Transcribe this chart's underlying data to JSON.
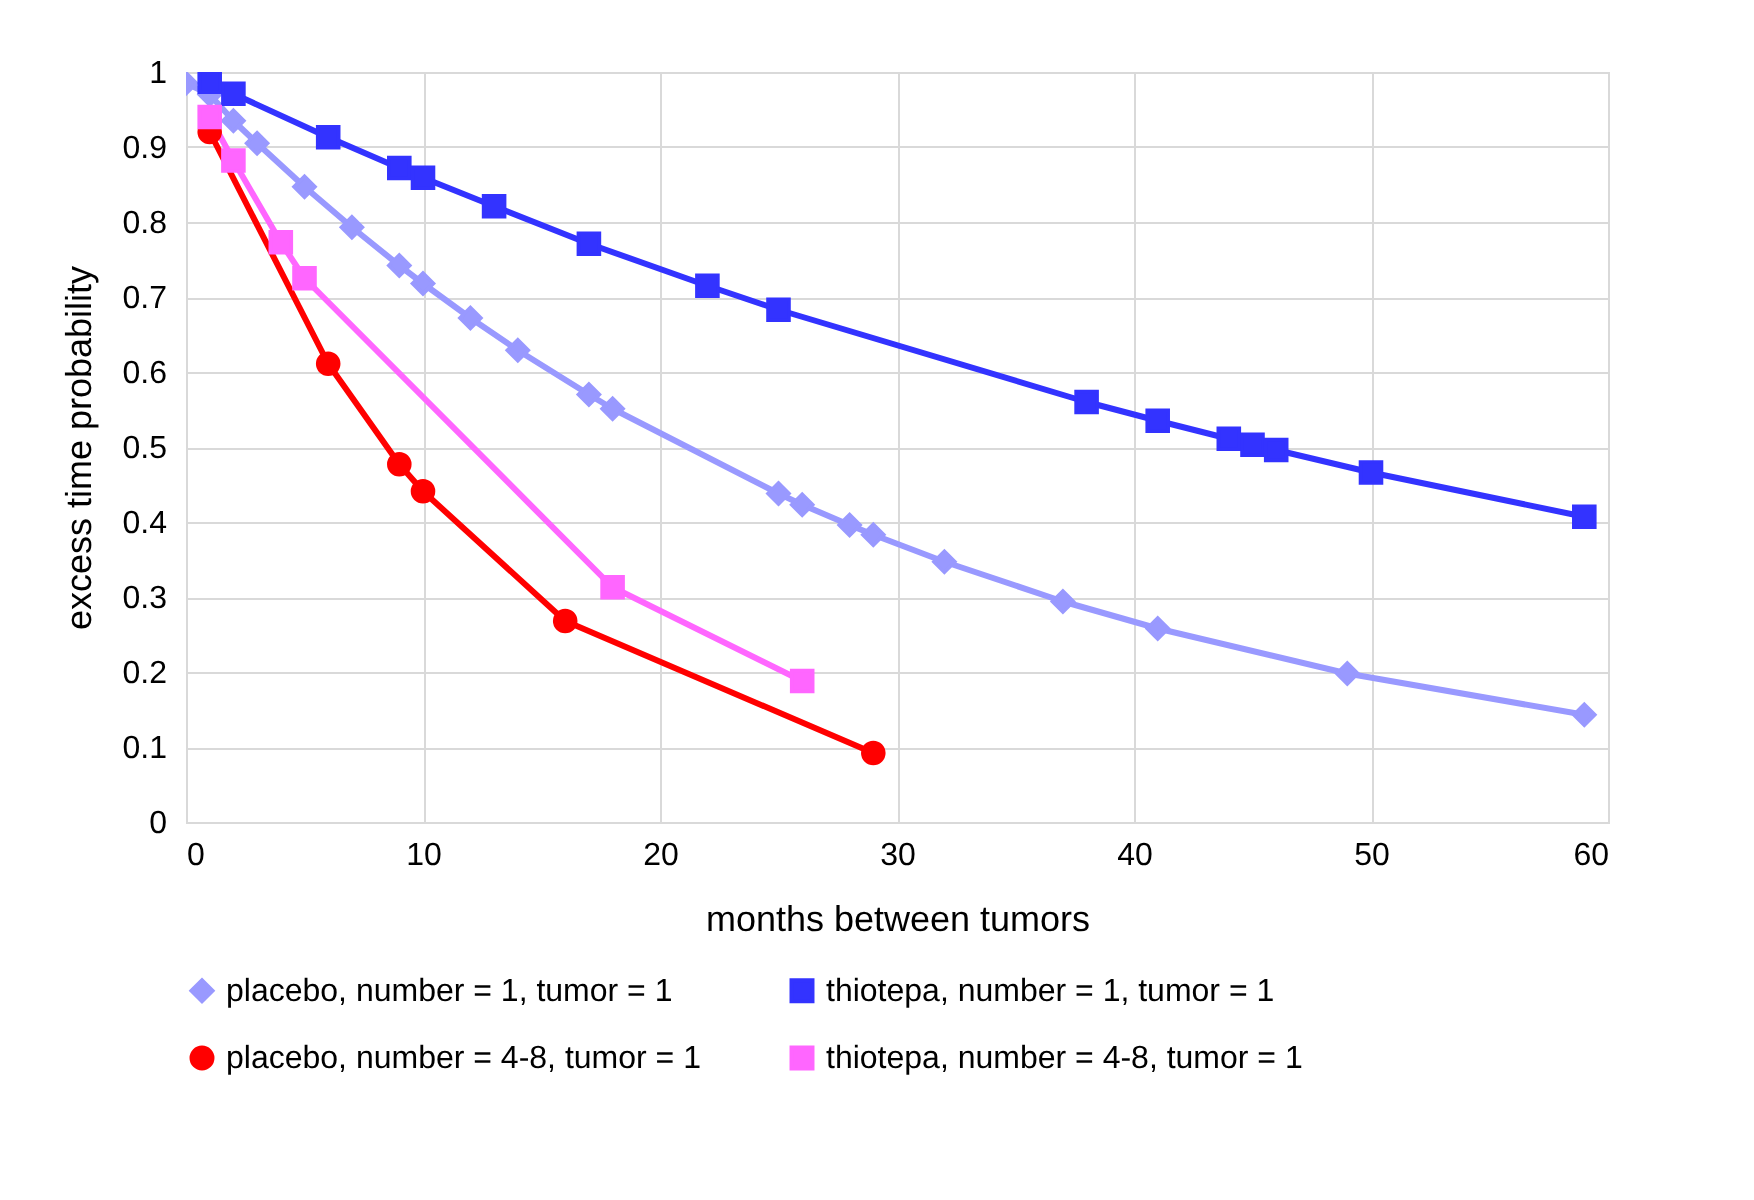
{
  "chart_data": {
    "type": "line",
    "xlabel": "months between tumors",
    "ylabel": "excess time probability",
    "xlim": [
      0,
      60
    ],
    "xticks": [
      0,
      10,
      20,
      30,
      40,
      50,
      60
    ],
    "ylim": [
      0,
      1
    ],
    "yticks": [
      0,
      0.1,
      0.2,
      0.3,
      0.4,
      0.5,
      0.6,
      0.7,
      0.8,
      0.9,
      1
    ],
    "grid": true,
    "legend": "bottom",
    "line_style": "solid",
    "series": [
      {
        "name": "placebo, number = 1, tumor = 1",
        "color": "#9999ff",
        "marker": "diamond",
        "x": [
          0,
          1,
          2,
          3,
          5,
          7,
          9,
          10,
          12,
          14,
          17,
          18,
          25,
          26,
          28,
          29,
          32,
          37,
          41,
          49,
          59
        ],
        "values": [
          0.985,
          0.97,
          0.935,
          0.905,
          0.847,
          0.793,
          0.742,
          0.718,
          0.672,
          0.629,
          0.57,
          0.551,
          0.438,
          0.423,
          0.396,
          0.383,
          0.347,
          0.294,
          0.258,
          0.198,
          0.143
        ]
      },
      {
        "name": "thiotepa, number = 1, tumor = 1",
        "color": "#3333ff",
        "marker": "square",
        "x": [
          1,
          2,
          6,
          9,
          10,
          13,
          17,
          22,
          25,
          38,
          41,
          44,
          45,
          46,
          50,
          59
        ],
        "values": [
          0.987,
          0.971,
          0.913,
          0.872,
          0.859,
          0.821,
          0.771,
          0.715,
          0.683,
          0.56,
          0.535,
          0.511,
          0.503,
          0.496,
          0.466,
          0.407
        ]
      },
      {
        "name": "placebo, number = 4-8, tumor = 1",
        "color": "#ff0000",
        "marker": "circle",
        "x": [
          1,
          6,
          9,
          10,
          16,
          29
        ],
        "values": [
          0.92,
          0.611,
          0.477,
          0.441,
          0.268,
          0.092
        ]
      },
      {
        "name": "thiotepa, number = 4-8, tumor = 1",
        "color": "#ff66ff",
        "marker": "square",
        "x": [
          1,
          2,
          4,
          5,
          18,
          26
        ],
        "values": [
          0.94,
          0.882,
          0.773,
          0.725,
          0.313,
          0.188
        ]
      }
    ]
  }
}
